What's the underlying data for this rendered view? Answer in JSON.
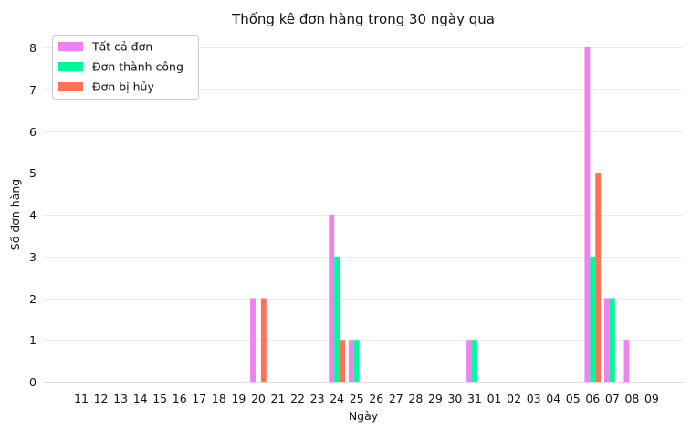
{
  "chart_data": {
    "type": "bar",
    "title": "Thống kê đơn hàng trong 30 ngày qua",
    "xlabel": "Ngày",
    "ylabel": "Số đơn hàng",
    "ylim": [
      0,
      8.4
    ],
    "yticks": [
      0,
      1,
      2,
      3,
      4,
      5,
      6,
      7,
      8
    ],
    "grid": "horizontal",
    "legend_position": "top-left",
    "categories": [
      "11",
      "12",
      "13",
      "14",
      "15",
      "16",
      "17",
      "18",
      "19",
      "20",
      "21",
      "22",
      "23",
      "24",
      "25",
      "26",
      "27",
      "28",
      "29",
      "30",
      "31",
      "01",
      "02",
      "03",
      "04",
      "05",
      "06",
      "07",
      "08",
      "09"
    ],
    "series": [
      {
        "name": "Tất cả đơn",
        "color": "#ee82ee",
        "values": [
          0,
          0,
          0,
          0,
          0,
          0,
          0,
          0,
          0,
          2,
          0,
          0,
          0,
          4,
          1,
          0,
          0,
          0,
          0,
          0,
          1,
          0,
          0,
          0,
          0,
          0,
          8,
          2,
          1,
          0
        ]
      },
      {
        "name": "Đơn thành công",
        "color": "#00fa9a",
        "values": [
          0,
          0,
          0,
          0,
          0,
          0,
          0,
          0,
          0,
          0,
          0,
          0,
          0,
          3,
          1,
          0,
          0,
          0,
          0,
          0,
          1,
          0,
          0,
          0,
          0,
          0,
          3,
          2,
          0,
          0
        ]
      },
      {
        "name": "Đơn bị hủy",
        "color": "#ff7256",
        "values": [
          0,
          0,
          0,
          0,
          0,
          0,
          0,
          0,
          0,
          2,
          0,
          0,
          0,
          1,
          0,
          0,
          0,
          0,
          0,
          0,
          0,
          0,
          0,
          0,
          0,
          0,
          5,
          0,
          0,
          0
        ]
      }
    ]
  }
}
